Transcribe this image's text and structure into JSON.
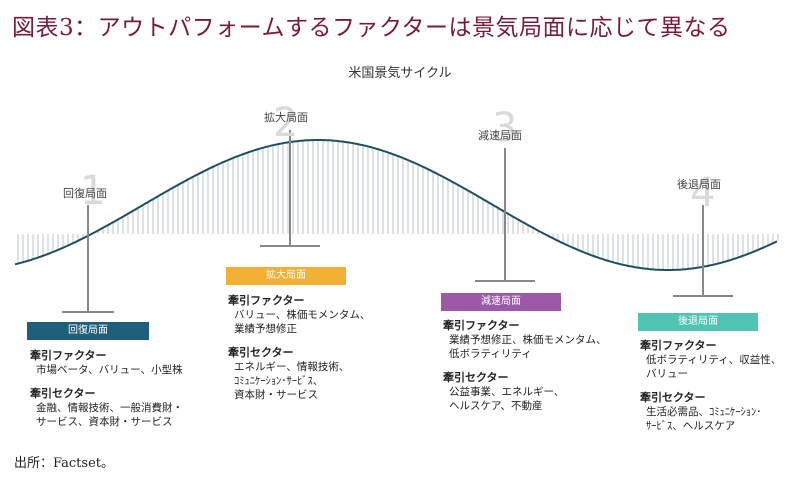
{
  "title": "図表3：アウトパフォームするファクターは景気局面に応じて異なる",
  "subtitle": "米国景気サイクル",
  "source": "出所：Factset。",
  "phases": [
    {
      "num": "1",
      "label": "回復局面",
      "badge": "回復局面",
      "badge_color": "#1f5f7a",
      "badge_text_color": "#ffffff",
      "factor_head": "牽引ファクター",
      "factors": [
        "市場ベータ、バリュー、小型株"
      ],
      "sector_head": "牽引セクター",
      "sectors": [
        "金融、情報技術、一般消費財・",
        "サービス、資本財・サービス"
      ]
    },
    {
      "num": "2",
      "label": "拡大局面",
      "badge": "拡大局面",
      "badge_color": "#f2b134",
      "badge_text_color": "#ffffff",
      "factor_head": "牽引ファクター",
      "factors": [
        "バリュー、株価モメンタム、",
        "業績予想修正"
      ],
      "sector_head": "牽引セクター",
      "sectors": [
        "エネルギー、情報技術、",
        "ｺﾐｭﾆｹｰｼｮﾝ･ｻｰﾋﾞｽ、",
        "資本財・サービス"
      ]
    },
    {
      "num": "3",
      "label": "減速局面",
      "badge": "減速局面",
      "badge_color": "#9b59a8",
      "badge_text_color": "#ffffff",
      "factor_head": "牽引ファクター",
      "factors": [
        "業績予想修正、株価モメンタム、",
        "低ボラティリティ"
      ],
      "sector_head": "牽引セクター",
      "sectors": [
        "公益事業、エネルギー、",
        "ヘルスケア、不動産"
      ]
    },
    {
      "num": "4",
      "label": "後退局面",
      "badge": "後退局面",
      "badge_color": "#4fc4b4",
      "badge_text_color": "#ffffff",
      "factor_head": "牽引ファクター",
      "factors": [
        "低ボラティリティ、収益性、",
        "バリュー"
      ],
      "sector_head": "牽引セクター",
      "sectors": [
        "生活必需品、ｺﾐｭﾆｹｰｼｮﾝ･",
        "ｻｰﾋﾞｽ、ヘルスケア"
      ]
    }
  ],
  "colors": {
    "curve": "#1f4e63",
    "hatch": "#b8c7cf",
    "stem": "#888888"
  }
}
